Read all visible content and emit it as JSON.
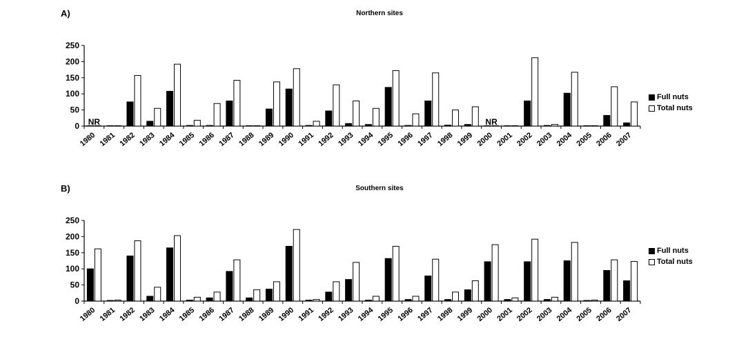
{
  "chart_data": [
    {
      "type": "bar",
      "panel_label": "A)",
      "title": "Northern sites",
      "categories": [
        "1980",
        "1981",
        "1982",
        "1983",
        "1984",
        "1985",
        "1986",
        "1987",
        "1988",
        "1989",
        "1990",
        "1991",
        "1992",
        "1993",
        "1994",
        "1995",
        "1996",
        "1997",
        "1998",
        "1999",
        "2000",
        "2001",
        "2002",
        "2003",
        "2004",
        "2005",
        "2006",
        "2007"
      ],
      "series": [
        {
          "name": "Full nuts",
          "values": [
            0,
            0,
            75,
            15,
            108,
            2,
            2,
            78,
            0,
            53,
            115,
            2,
            47,
            8,
            5,
            120,
            2,
            78,
            3,
            5,
            0,
            0,
            78,
            2,
            102,
            0,
            33,
            10
          ]
        },
        {
          "name": "Total nuts",
          "values": [
            0,
            0,
            157,
            55,
            192,
            18,
            70,
            142,
            0,
            137,
            178,
            15,
            128,
            78,
            55,
            172,
            38,
            165,
            50,
            60,
            0,
            0,
            212,
            5,
            167,
            0,
            122,
            75
          ]
        }
      ],
      "annotations": [
        {
          "category": "1980",
          "text": "NR"
        },
        {
          "category": "2000",
          "text": "NR"
        }
      ],
      "ylim": [
        0,
        250
      ],
      "yticks": [
        0,
        50,
        100,
        150,
        200,
        250
      ],
      "xlabel": "",
      "ylabel": "",
      "colors": {
        "Full nuts": "#000000",
        "Total nuts": "#ffffff"
      },
      "legend_position": "right"
    },
    {
      "type": "bar",
      "panel_label": "B)",
      "title": "Southern sites",
      "categories": [
        "1980",
        "1981",
        "1982",
        "1983",
        "1984",
        "1985",
        "1986",
        "1987",
        "1988",
        "1989",
        "1990",
        "1991",
        "1992",
        "1993",
        "1994",
        "1995",
        "1996",
        "1997",
        "1998",
        "1999",
        "2000",
        "2001",
        "2002",
        "2003",
        "2004",
        "2005",
        "2006",
        "2007"
      ],
      "series": [
        {
          "name": "Full nuts",
          "values": [
            100,
            2,
            140,
            15,
            165,
            3,
            10,
            92,
            10,
            37,
            170,
            3,
            28,
            67,
            3,
            132,
            5,
            78,
            5,
            35,
            122,
            5,
            122,
            5,
            125,
            2,
            95,
            63
          ]
        },
        {
          "name": "Total nuts",
          "values": [
            162,
            3,
            187,
            43,
            203,
            12,
            28,
            128,
            35,
            60,
            222,
            5,
            60,
            120,
            15,
            170,
            15,
            130,
            28,
            63,
            175,
            10,
            192,
            12,
            182,
            3,
            128,
            123
          ]
        }
      ],
      "annotations": [],
      "ylim": [
        0,
        250
      ],
      "yticks": [
        0,
        50,
        100,
        150,
        200,
        250
      ],
      "xlabel": "",
      "ylabel": "",
      "colors": {
        "Full nuts": "#000000",
        "Total nuts": "#ffffff"
      },
      "legend_position": "right"
    }
  ]
}
